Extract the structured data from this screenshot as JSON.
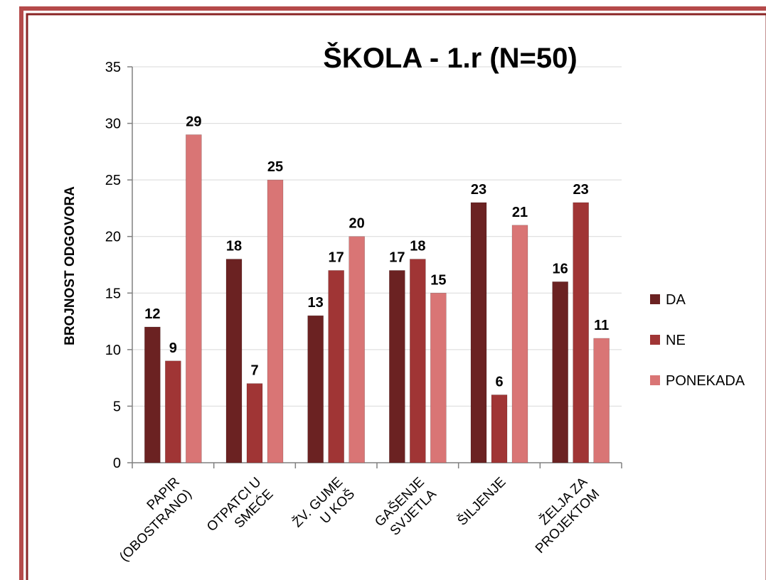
{
  "chart_data": {
    "type": "bar",
    "title": "ŠKOLA - 1.r (N=50)",
    "xlabel": "",
    "ylabel": "BROJNOST ODGOVORA",
    "ylim": [
      0,
      35
    ],
    "yticks": [
      0,
      5,
      10,
      15,
      20,
      25,
      30,
      35
    ],
    "grid": true,
    "legend": "right",
    "categories": [
      [
        "PAPIR",
        "(OBOSTRANO)"
      ],
      [
        "OTPATCI U",
        "SMEĆE"
      ],
      [
        "ŽV. GUME",
        "U KOŠ"
      ],
      [
        "GAŠENJE",
        "SVJETLA"
      ],
      [
        "ŠILJENJE"
      ],
      [
        "ŽELJA ZA",
        "PROJEKTOM"
      ]
    ],
    "series": [
      {
        "name": "DA",
        "color": "#6b2222",
        "values": [
          12,
          18,
          13,
          17,
          23,
          16
        ]
      },
      {
        "name": "NE",
        "color": "#a03535",
        "values": [
          9,
          7,
          17,
          18,
          6,
          23
        ]
      },
      {
        "name": "PONEKADA",
        "color": "#d97575",
        "values": [
          29,
          25,
          20,
          15,
          21,
          11
        ]
      }
    ],
    "frame_color": "#9e3030"
  }
}
